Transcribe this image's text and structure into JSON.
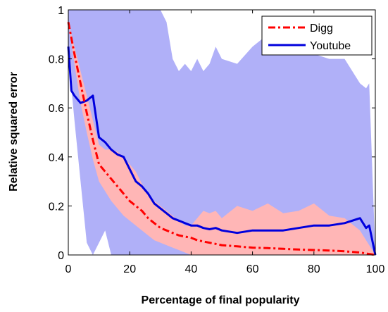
{
  "chart_data": {
    "type": "line",
    "xlabel": "Percentage of final popularity",
    "ylabel": "Relative squared error",
    "xlim": [
      0,
      100
    ],
    "ylim": [
      0,
      1
    ],
    "xticks": [
      "0",
      "20",
      "40",
      "60",
      "80",
      "100"
    ],
    "yticks": [
      "0",
      "0.2",
      "0.4",
      "0.6",
      "0.8",
      "1"
    ],
    "legend_position": "top-right",
    "series": [
      {
        "name": "Digg",
        "color": "#ff0000",
        "band_color": "#ffb6b6",
        "x": [
          0,
          2,
          4,
          6,
          8,
          10,
          12,
          14,
          16,
          18,
          20,
          22,
          24,
          26,
          28,
          30,
          32,
          34,
          36,
          38,
          40,
          42,
          44,
          46,
          48,
          50,
          55,
          60,
          65,
          70,
          75,
          80,
          85,
          90,
          95,
          100
        ],
        "y": [
          0.95,
          0.82,
          0.7,
          0.58,
          0.47,
          0.37,
          0.34,
          0.31,
          0.28,
          0.25,
          0.22,
          0.2,
          0.18,
          0.15,
          0.13,
          0.11,
          0.1,
          0.09,
          0.08,
          0.075,
          0.07,
          0.06,
          0.055,
          0.05,
          0.045,
          0.04,
          0.035,
          0.03,
          0.028,
          0.025,
          0.022,
          0.02,
          0.018,
          0.015,
          0.01,
          0.0
        ],
        "lower": [
          0.95,
          0.78,
          0.62,
          0.5,
          0.39,
          0.3,
          0.26,
          0.22,
          0.19,
          0.16,
          0.14,
          0.12,
          0.1,
          0.08,
          0.06,
          0.05,
          0.04,
          0.03,
          0.02,
          0.01,
          0.0,
          0.0,
          0.0,
          0.0,
          0.0,
          0.0,
          0.0,
          0.0,
          0.0,
          0.0,
          0.0,
          0.0,
          0.0,
          0.0,
          0.0,
          0.0
        ],
        "upper": [
          0.95,
          0.85,
          0.75,
          0.65,
          0.55,
          0.45,
          0.43,
          0.43,
          0.42,
          0.4,
          0.37,
          0.34,
          0.29,
          0.25,
          0.22,
          0.2,
          0.18,
          0.16,
          0.14,
          0.12,
          0.12,
          0.15,
          0.18,
          0.17,
          0.18,
          0.15,
          0.2,
          0.18,
          0.21,
          0.17,
          0.18,
          0.21,
          0.16,
          0.15,
          0.1,
          0.0
        ]
      },
      {
        "name": "Youtube",
        "color": "#0000dd",
        "band_color": "#b0b0f8",
        "x": [
          0,
          1,
          2,
          4,
          6,
          8,
          10,
          12,
          14,
          16,
          18,
          20,
          22,
          24,
          26,
          28,
          30,
          32,
          34,
          36,
          38,
          40,
          42,
          44,
          46,
          48,
          50,
          55,
          60,
          65,
          70,
          75,
          80,
          85,
          90,
          95,
          97,
          98,
          100
        ],
        "y": [
          0.85,
          0.67,
          0.65,
          0.62,
          0.63,
          0.65,
          0.48,
          0.46,
          0.43,
          0.41,
          0.4,
          0.35,
          0.3,
          0.28,
          0.25,
          0.21,
          0.19,
          0.17,
          0.15,
          0.14,
          0.13,
          0.12,
          0.12,
          0.11,
          0.105,
          0.11,
          0.1,
          0.09,
          0.1,
          0.1,
          0.1,
          0.11,
          0.12,
          0.12,
          0.13,
          0.15,
          0.11,
          0.12,
          0.0
        ],
        "lower": [
          0.85,
          0.68,
          0.55,
          0.3,
          0.05,
          0.0,
          0.05,
          0.1,
          0.0,
          0.0,
          0.0,
          0.0,
          0.0,
          0.0,
          0.0,
          0.0,
          0.0,
          0.0,
          0.0,
          0.0,
          0.0,
          0.0,
          0.0,
          0.0,
          0.0,
          0.0,
          0.0,
          0.0,
          0.0,
          0.0,
          0.0,
          0.0,
          0.0,
          0.0,
          0.0,
          0.0,
          0.0,
          0.0,
          0.0
        ],
        "upper": [
          1.0,
          1.0,
          1.0,
          1.0,
          1.0,
          1.0,
          1.0,
          1.0,
          1.0,
          1.0,
          1.0,
          1.0,
          1.0,
          1.0,
          1.0,
          1.0,
          1.0,
          0.95,
          0.8,
          0.75,
          0.78,
          0.75,
          0.8,
          0.75,
          0.78,
          0.85,
          0.8,
          0.78,
          0.85,
          0.9,
          0.85,
          0.9,
          0.82,
          0.8,
          0.8,
          0.7,
          0.68,
          0.7,
          0.0
        ]
      }
    ]
  }
}
